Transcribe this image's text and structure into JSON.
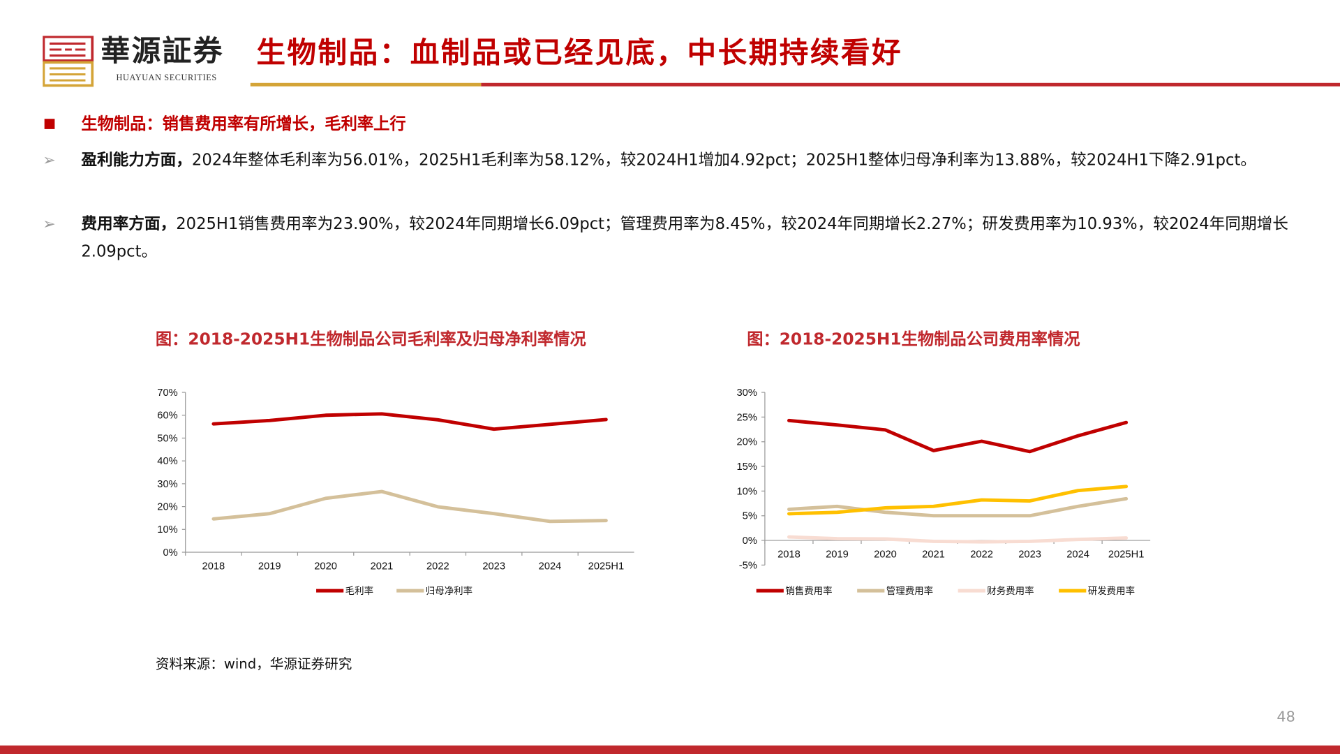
{
  "header": {
    "brand": "華源証券",
    "brand_en": "HUAYUAN SECURITIES",
    "title": "生物制品：血制品或已经见底，中长期持续看好"
  },
  "section_heading": "生物制品：销售费用率有所增长，毛利率上行",
  "paragraphs": [
    {
      "lead": "盈利能力方面，",
      "text": "2024年整体毛利率为56.01%，2025H1毛利率为58.12%，较2024H1增加4.92pct；2025H1整体归母净利率为13.88%，较2024H1下降2.91pct。"
    },
    {
      "lead": "费用率方面，",
      "text": "2025H1销售费用率为23.90%，较2024年同期增长6.09pct；管理费用率为8.45%，较2024年同期增长2.27%；研发费用率为10.93%，较2024年同期增长2.09pct。"
    }
  ],
  "source": "资料来源：wind，华源证券研究",
  "page_number": "48",
  "icons": {
    "bullet": "square-bullet-icon",
    "sub_bullet": "arrow-bullet-icon"
  },
  "chart_data": [
    {
      "type": "line",
      "title": "图：2018-2025H1生物制品公司毛利率及归母净利率情况",
      "categories": [
        "2018",
        "2019",
        "2020",
        "2021",
        "2022",
        "2023",
        "2024",
        "2025H1"
      ],
      "ylim": [
        0,
        70
      ],
      "yticks": [
        "0%",
        "10%",
        "20%",
        "30%",
        "40%",
        "50%",
        "60%",
        "70%"
      ],
      "ystep": 10,
      "legend": "bottom",
      "grid": false,
      "series": [
        {
          "name": "毛利率",
          "color": "#c00000",
          "values": [
            56.2,
            57.7,
            60.0,
            60.6,
            58.0,
            53.9,
            56.01,
            58.12
          ]
        },
        {
          "name": "归母净利率",
          "color": "#d4c09a",
          "values": [
            14.6,
            16.9,
            23.6,
            26.6,
            19.9,
            16.9,
            13.5,
            13.88
          ]
        }
      ]
    },
    {
      "type": "line",
      "title": "图：2018-2025H1生物制品公司费用率情况",
      "categories": [
        "2018",
        "2019",
        "2020",
        "2021",
        "2022",
        "2023",
        "2024",
        "2025H1"
      ],
      "ylim": [
        -5,
        30
      ],
      "yticks": [
        "-5%",
        "0%",
        "5%",
        "10%",
        "15%",
        "20%",
        "25%",
        "30%"
      ],
      "ystep": 5,
      "legend": "bottom",
      "grid": false,
      "series": [
        {
          "name": "销售费用率",
          "color": "#c00000",
          "values": [
            24.3,
            23.4,
            22.4,
            18.2,
            20.1,
            18.0,
            21.2,
            23.9
          ]
        },
        {
          "name": "管理费用率",
          "color": "#d4c09a",
          "values": [
            6.3,
            6.9,
            5.7,
            5.0,
            5.0,
            5.0,
            6.9,
            8.45
          ]
        },
        {
          "name": "财务费用率",
          "color": "#f8dcd2",
          "values": [
            0.7,
            0.35,
            0.3,
            -0.2,
            -0.3,
            -0.2,
            0.2,
            0.5
          ]
        },
        {
          "name": "研发费用率",
          "color": "#ffc000",
          "values": [
            5.4,
            5.7,
            6.6,
            6.9,
            8.2,
            8.0,
            10.1,
            10.93
          ]
        }
      ]
    }
  ]
}
